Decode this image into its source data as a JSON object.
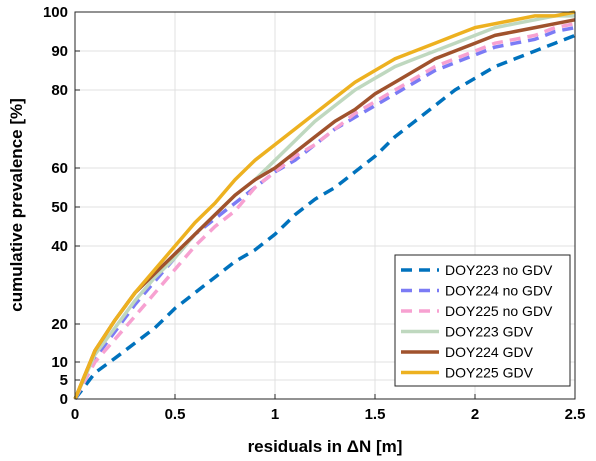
{
  "chart_data": {
    "type": "line",
    "xlabel": "residuals in ΔN [m]",
    "ylabel": "cumulative prevalence [%]",
    "xlim": [
      0,
      2.5
    ],
    "ylim": [
      0,
      100
    ],
    "grid": true,
    "legend_position": "bottom-right",
    "x_ticks": [
      "0",
      "0.5",
      "1",
      "1.5",
      "2",
      "2.5"
    ],
    "y_ticks": [
      "0",
      "5",
      "10",
      "20",
      "40",
      "50",
      "60",
      "80",
      "90",
      "100"
    ],
    "y_tick_values": [
      0,
      5,
      10,
      20,
      40,
      50,
      60,
      80,
      90,
      100
    ],
    "series": [
      {
        "name": "DOY223 no GDV",
        "color": "#0072BD",
        "dash": true,
        "x": [
          0,
          0.1,
          0.2,
          0.3,
          0.4,
          0.5,
          0.6,
          0.7,
          0.8,
          0.9,
          1.0,
          1.1,
          1.2,
          1.3,
          1.4,
          1.5,
          1.6,
          1.7,
          1.8,
          1.9,
          2.0,
          2.1,
          2.2,
          2.3,
          2.4,
          2.5
        ],
        "y": [
          0,
          7,
          11,
          15,
          19,
          24,
          28,
          32,
          36,
          39,
          43,
          48,
          52,
          55,
          59,
          63,
          68,
          72,
          76,
          80,
          83,
          86,
          88,
          90,
          92,
          94
        ]
      },
      {
        "name": "DOY224 no GDV",
        "color": "#7B7BF5",
        "dash": true,
        "x": [
          0,
          0.1,
          0.2,
          0.3,
          0.4,
          0.5,
          0.6,
          0.7,
          0.8,
          0.9,
          1.0,
          1.1,
          1.2,
          1.3,
          1.4,
          1.5,
          1.6,
          1.7,
          1.8,
          1.9,
          2.0,
          2.1,
          2.2,
          2.3,
          2.4,
          2.5
        ],
        "y": [
          0,
          11,
          18,
          25,
          31,
          37,
          43,
          47,
          51,
          55,
          59,
          62,
          66,
          70,
          73,
          76,
          79,
          82,
          85,
          87,
          89,
          91,
          92,
          93,
          95,
          96
        ]
      },
      {
        "name": "DOY225 no GDV",
        "color": "#F7A1D1",
        "dash": true,
        "x": [
          0,
          0.1,
          0.2,
          0.3,
          0.4,
          0.5,
          0.6,
          0.7,
          0.8,
          0.9,
          1.0,
          1.1,
          1.2,
          1.3,
          1.4,
          1.5,
          1.6,
          1.7,
          1.8,
          1.9,
          2.0,
          2.1,
          2.2,
          2.3,
          2.4,
          2.5
        ],
        "y": [
          0,
          10,
          16,
          22,
          28,
          34,
          40,
          45,
          49,
          55,
          59,
          63,
          66,
          70,
          74,
          77,
          80,
          83,
          86,
          88,
          90,
          92,
          93,
          94,
          96,
          97
        ]
      },
      {
        "name": "DOY223 GDV",
        "color": "#BFD8BF",
        "dash": false,
        "x": [
          0,
          0.1,
          0.2,
          0.3,
          0.4,
          0.5,
          0.6,
          0.7,
          0.8,
          0.9,
          1.0,
          1.1,
          1.2,
          1.3,
          1.4,
          1.5,
          1.6,
          1.7,
          1.8,
          1.9,
          2.0,
          2.1,
          2.2,
          2.3,
          2.4,
          2.5
        ],
        "y": [
          0,
          12,
          19,
          26,
          32,
          37,
          43,
          48,
          53,
          57,
          62,
          67,
          72,
          76,
          80,
          83,
          86,
          88,
          90,
          92,
          94,
          96,
          97,
          98,
          99,
          99
        ]
      },
      {
        "name": "DOY224 GDV",
        "color": "#A0522D",
        "dash": false,
        "x": [
          0,
          0.1,
          0.2,
          0.3,
          0.4,
          0.5,
          0.6,
          0.7,
          0.8,
          0.9,
          1.0,
          1.1,
          1.2,
          1.3,
          1.4,
          1.5,
          1.6,
          1.7,
          1.8,
          1.9,
          2.0,
          2.1,
          2.2,
          2.3,
          2.4,
          2.5
        ],
        "y": [
          0,
          13,
          21,
          28,
          33,
          38,
          43,
          48,
          53,
          57,
          60,
          64,
          68,
          72,
          75,
          79,
          82,
          85,
          88,
          90,
          92,
          94,
          95,
          96,
          97,
          98
        ]
      },
      {
        "name": "DOY225 GDV",
        "color": "#EDB120",
        "dash": false,
        "x": [
          0,
          0.1,
          0.2,
          0.3,
          0.4,
          0.5,
          0.6,
          0.7,
          0.8,
          0.9,
          1.0,
          1.1,
          1.2,
          1.3,
          1.4,
          1.5,
          1.6,
          1.7,
          1.8,
          1.9,
          2.0,
          2.1,
          2.2,
          2.3,
          2.4,
          2.5
        ],
        "y": [
          0,
          13,
          21,
          28,
          34,
          40,
          46,
          51,
          57,
          62,
          66,
          70,
          74,
          78,
          82,
          85,
          88,
          90,
          92,
          94,
          96,
          97,
          98,
          99,
          99,
          100
        ]
      }
    ]
  }
}
